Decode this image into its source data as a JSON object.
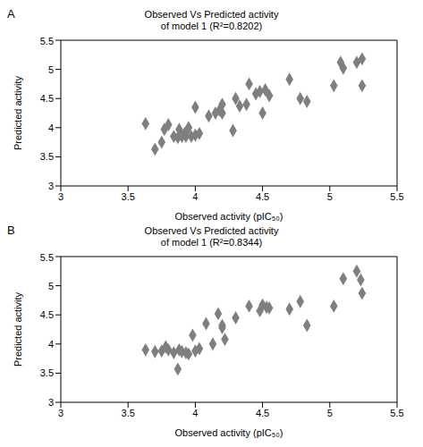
{
  "chart_data": [
    {
      "type": "scatter",
      "annotations": [
        "A"
      ],
      "title": "Observed Vs Predicted activity",
      "subtitle": "of model 1 (R²=0.8202)",
      "x_label": "Observed activity (pIC₅₀)",
      "y_label": "Predicted activity",
      "x": [
        3.63,
        3.7,
        3.75,
        3.77,
        3.8,
        3.84,
        3.87,
        3.88,
        3.9,
        3.92,
        3.93,
        3.95,
        3.97,
        4.0,
        4.0,
        4.03,
        4.1,
        4.15,
        4.18,
        4.2,
        4.2,
        4.28,
        4.3,
        4.33,
        4.38,
        4.4,
        4.45,
        4.48,
        4.5,
        4.52,
        4.55,
        4.7,
        4.78,
        4.83,
        5.03,
        5.08,
        5.1,
        5.2,
        5.24,
        5.24
      ],
      "values": [
        4.07,
        3.63,
        3.75,
        3.97,
        4.05,
        3.85,
        3.83,
        3.97,
        3.85,
        3.9,
        3.85,
        4.0,
        3.85,
        4.35,
        3.87,
        3.9,
        4.2,
        4.25,
        4.3,
        4.25,
        4.4,
        3.95,
        4.5,
        4.37,
        4.4,
        4.75,
        4.58,
        4.62,
        4.25,
        4.65,
        4.55,
        4.83,
        4.5,
        4.45,
        4.72,
        5.12,
        5.02,
        5.12,
        5.18,
        4.72
      ],
      "color": "#7f7f7f",
      "marker": "diamond",
      "grid": false,
      "xlim": [
        3,
        5.5
      ],
      "ylim": [
        3,
        5.5
      ],
      "xticks": [
        3,
        3.5,
        4,
        4.5,
        5,
        5.5
      ],
      "yticks": [
        3,
        3.5,
        4,
        4.5,
        5,
        5.5
      ]
    },
    {
      "type": "scatter",
      "annotations": [
        "B"
      ],
      "title": "Observed Vs Predicted activity",
      "subtitle": "of model 1 (R²=0.8344)",
      "x_label": "Observed activity (pIC₅₀)",
      "y_label": "Predicted activity",
      "x": [
        3.63,
        3.7,
        3.75,
        3.78,
        3.8,
        3.84,
        3.87,
        3.88,
        3.9,
        3.93,
        3.95,
        3.98,
        4.0,
        4.03,
        4.08,
        4.13,
        4.17,
        4.2,
        4.2,
        4.22,
        4.3,
        4.4,
        4.48,
        4.5,
        4.53,
        4.55,
        4.7,
        4.78,
        4.83,
        5.03,
        5.1,
        5.2,
        5.23,
        5.24
      ],
      "values": [
        3.9,
        3.87,
        3.88,
        3.95,
        3.9,
        3.85,
        3.57,
        3.9,
        3.87,
        3.85,
        3.83,
        4.15,
        3.88,
        3.92,
        4.35,
        4.0,
        4.52,
        4.28,
        4.32,
        4.08,
        4.45,
        4.65,
        4.57,
        4.67,
        4.63,
        4.62,
        4.6,
        4.73,
        4.32,
        4.65,
        5.12,
        5.25,
        5.1,
        4.87
      ],
      "color": "#7f7f7f",
      "marker": "diamond",
      "grid": false,
      "xlim": [
        3,
        5.5
      ],
      "ylim": [
        3,
        5.5
      ],
      "xticks": [
        3,
        3.5,
        4,
        4.5,
        5,
        5.5
      ],
      "yticks": [
        3,
        3.5,
        4,
        4.5,
        5,
        5.5
      ]
    }
  ]
}
